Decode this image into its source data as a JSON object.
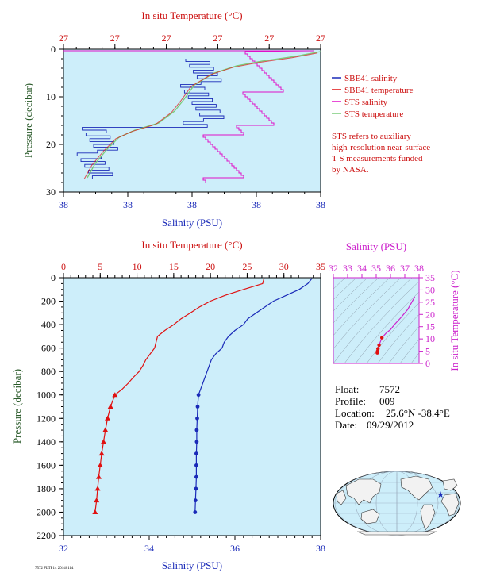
{
  "colors": {
    "background": "#cdeefa",
    "salinity": "#1a2ab8",
    "temperature": "#e01010",
    "sts_salinity": "#e010c8",
    "sts_temperature": "#7acc7a",
    "temp_axis": "#cc1010",
    "sal_axis": "#1a2ab8",
    "pressure_axis": "#2a5a2a",
    "ts_axis": "#cc22cc"
  },
  "chart_data": [
    {
      "type": "line",
      "name": "near-surface profile",
      "top_axis_label": "In situ Temperature (°C)",
      "top_ticks": [
        "27",
        "27",
        "27",
        "27",
        "27",
        "27"
      ],
      "bottom_axis_label": "Salinity (PSU)",
      "bottom_ticks": [
        "38",
        "38",
        "38",
        "38",
        "38"
      ],
      "ylabel": "Pressure (decibar)",
      "y_ticks": [
        "0",
        "10",
        "20",
        "30"
      ],
      "ylim": [
        0,
        30
      ],
      "note": [
        "STS refers to auxiliary",
        "high-resolution near-surface",
        "T-S measurements funded",
        "by NASA."
      ],
      "series": [
        {
          "name": "SBE41 salinity",
          "style": "stepped"
        },
        {
          "name": "SBE41 temperature",
          "style": "line"
        },
        {
          "name": "STS salinity",
          "style": "stepped"
        },
        {
          "name": "STS temperature",
          "style": "line"
        }
      ]
    },
    {
      "type": "line",
      "name": "full-depth profile",
      "top_axis_label": "In situ Temperature (°C)",
      "top_ticks": [
        "0",
        "5",
        "10",
        "15",
        "20",
        "25",
        "30",
        "35"
      ],
      "xlim_temperature": [
        0,
        35
      ],
      "bottom_axis_label": "Salinity (PSU)",
      "bottom_ticks": [
        "32",
        "34",
        "36",
        "38"
      ],
      "xlim_salinity": [
        32,
        38
      ],
      "ylabel": "Pressure (decibar)",
      "y_ticks": [
        "0",
        "200",
        "400",
        "600",
        "800",
        "1000",
        "1200",
        "1400",
        "1600",
        "1800",
        "2000",
        "2200"
      ],
      "ylim": [
        0,
        2200
      ],
      "temperature": {
        "pressure": [
          5,
          50,
          100,
          150,
          200,
          250,
          300,
          350,
          400,
          450,
          500,
          550,
          600,
          650,
          700,
          750,
          800,
          850,
          900,
          950,
          1000,
          1100,
          1200,
          1300,
          1400,
          1500,
          1600,
          1700,
          1800,
          1900,
          2000
        ],
        "values": [
          27.3,
          27.1,
          24.5,
          22.0,
          20.0,
          18.5,
          17.3,
          16.0,
          15.0,
          13.8,
          12.8,
          12.6,
          12.4,
          11.8,
          11.2,
          10.8,
          10.3,
          9.5,
          8.8,
          8.0,
          7.0,
          6.4,
          6.0,
          5.7,
          5.45,
          5.2,
          5.0,
          4.8,
          4.65,
          4.5,
          4.3
        ]
      },
      "salinity": {
        "pressure": [
          5,
          50,
          100,
          150,
          200,
          250,
          300,
          350,
          400,
          450,
          500,
          550,
          600,
          650,
          700,
          750,
          800,
          850,
          900,
          950,
          1000,
          1100,
          1200,
          1300,
          1400,
          1500,
          1600,
          1700,
          1800,
          1900,
          2000
        ],
        "values": [
          37.8,
          37.7,
          37.5,
          37.2,
          36.9,
          36.7,
          36.5,
          36.3,
          36.2,
          36.0,
          35.85,
          35.75,
          35.7,
          35.55,
          35.45,
          35.4,
          35.35,
          35.3,
          35.25,
          35.2,
          35.15,
          35.13,
          35.12,
          35.11,
          35.11,
          35.1,
          35.1,
          35.1,
          35.09,
          35.08,
          35.07
        ]
      },
      "marker_start_pressure": 1000
    },
    {
      "type": "line",
      "name": "T-S diagram",
      "top_axis_label": "Salinity (PSU)",
      "top_ticks": [
        "32",
        "33",
        "34",
        "35",
        "36",
        "37",
        "38"
      ],
      "xlim": [
        32,
        38
      ],
      "right_axis_label": "In situ Temperature (°C)",
      "right_ticks": [
        "0",
        "5",
        "10",
        "15",
        "20",
        "25",
        "30",
        "35"
      ],
      "ylim": [
        0,
        35
      ],
      "salinity": [
        37.7,
        37.2,
        36.7,
        36.3,
        36.0,
        35.7,
        35.4,
        35.2,
        35.12,
        35.1,
        35.08
      ],
      "temperature": [
        27.2,
        22.0,
        18.5,
        16.0,
        13.8,
        12.4,
        10.5,
        7.5,
        6.0,
        5.0,
        4.3
      ]
    }
  ],
  "info": {
    "float_label": "Float:",
    "float_value": "7572",
    "profile_label": "Profile:",
    "profile_value": "009",
    "location_label": "Location:",
    "location_value": "25.6°N  -38.4°E",
    "date_label": "Date:",
    "date_value": "09/29/2012"
  },
  "map": {
    "marker_lat": 25.6,
    "marker_lon": -38.4
  },
  "footer_code": "7572 FLTP14 20140114"
}
